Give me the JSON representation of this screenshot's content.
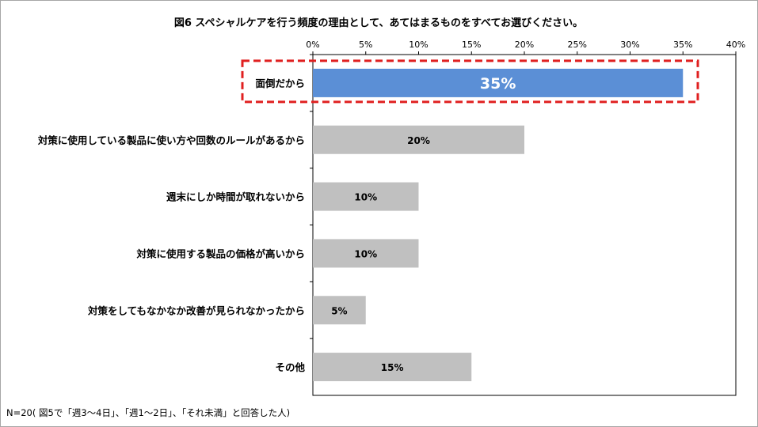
{
  "chart_data": {
    "type": "bar",
    "orientation": "horizontal",
    "title": "図6 スペシャルケアを行う頻度の理由として、あてはまるものをすべてお選びください。",
    "categories": [
      "面倒だから",
      "対策に使用している製品に使い方や回数のルールがあるから",
      "週末にしか時間が取れないから",
      "対策に使用する製品の価格が高いから",
      "対策をしてもなかなか改善が見られなかったから",
      "その他"
    ],
    "values": [
      35,
      20,
      10,
      10,
      5,
      15
    ],
    "value_labels": [
      "35%",
      "20%",
      "10%",
      "10%",
      "5%",
      "15%"
    ],
    "x_ticks": [
      "0%",
      "5%",
      "10%",
      "15%",
      "20%",
      "25%",
      "30%",
      "35%",
      "40%"
    ],
    "xlim": [
      0,
      40
    ],
    "x_axis_position": "top",
    "grid": false,
    "highlight_index": 0,
    "colors": {
      "highlight": "#5b8fd6",
      "bar": "#c0c0c0",
      "highlight_box": "#e02020",
      "border": "#a6a6a6"
    }
  },
  "footnote": "N=20( 図5で「週3～4日」、「週1～2日」、「それ未満」と回答した人)"
}
